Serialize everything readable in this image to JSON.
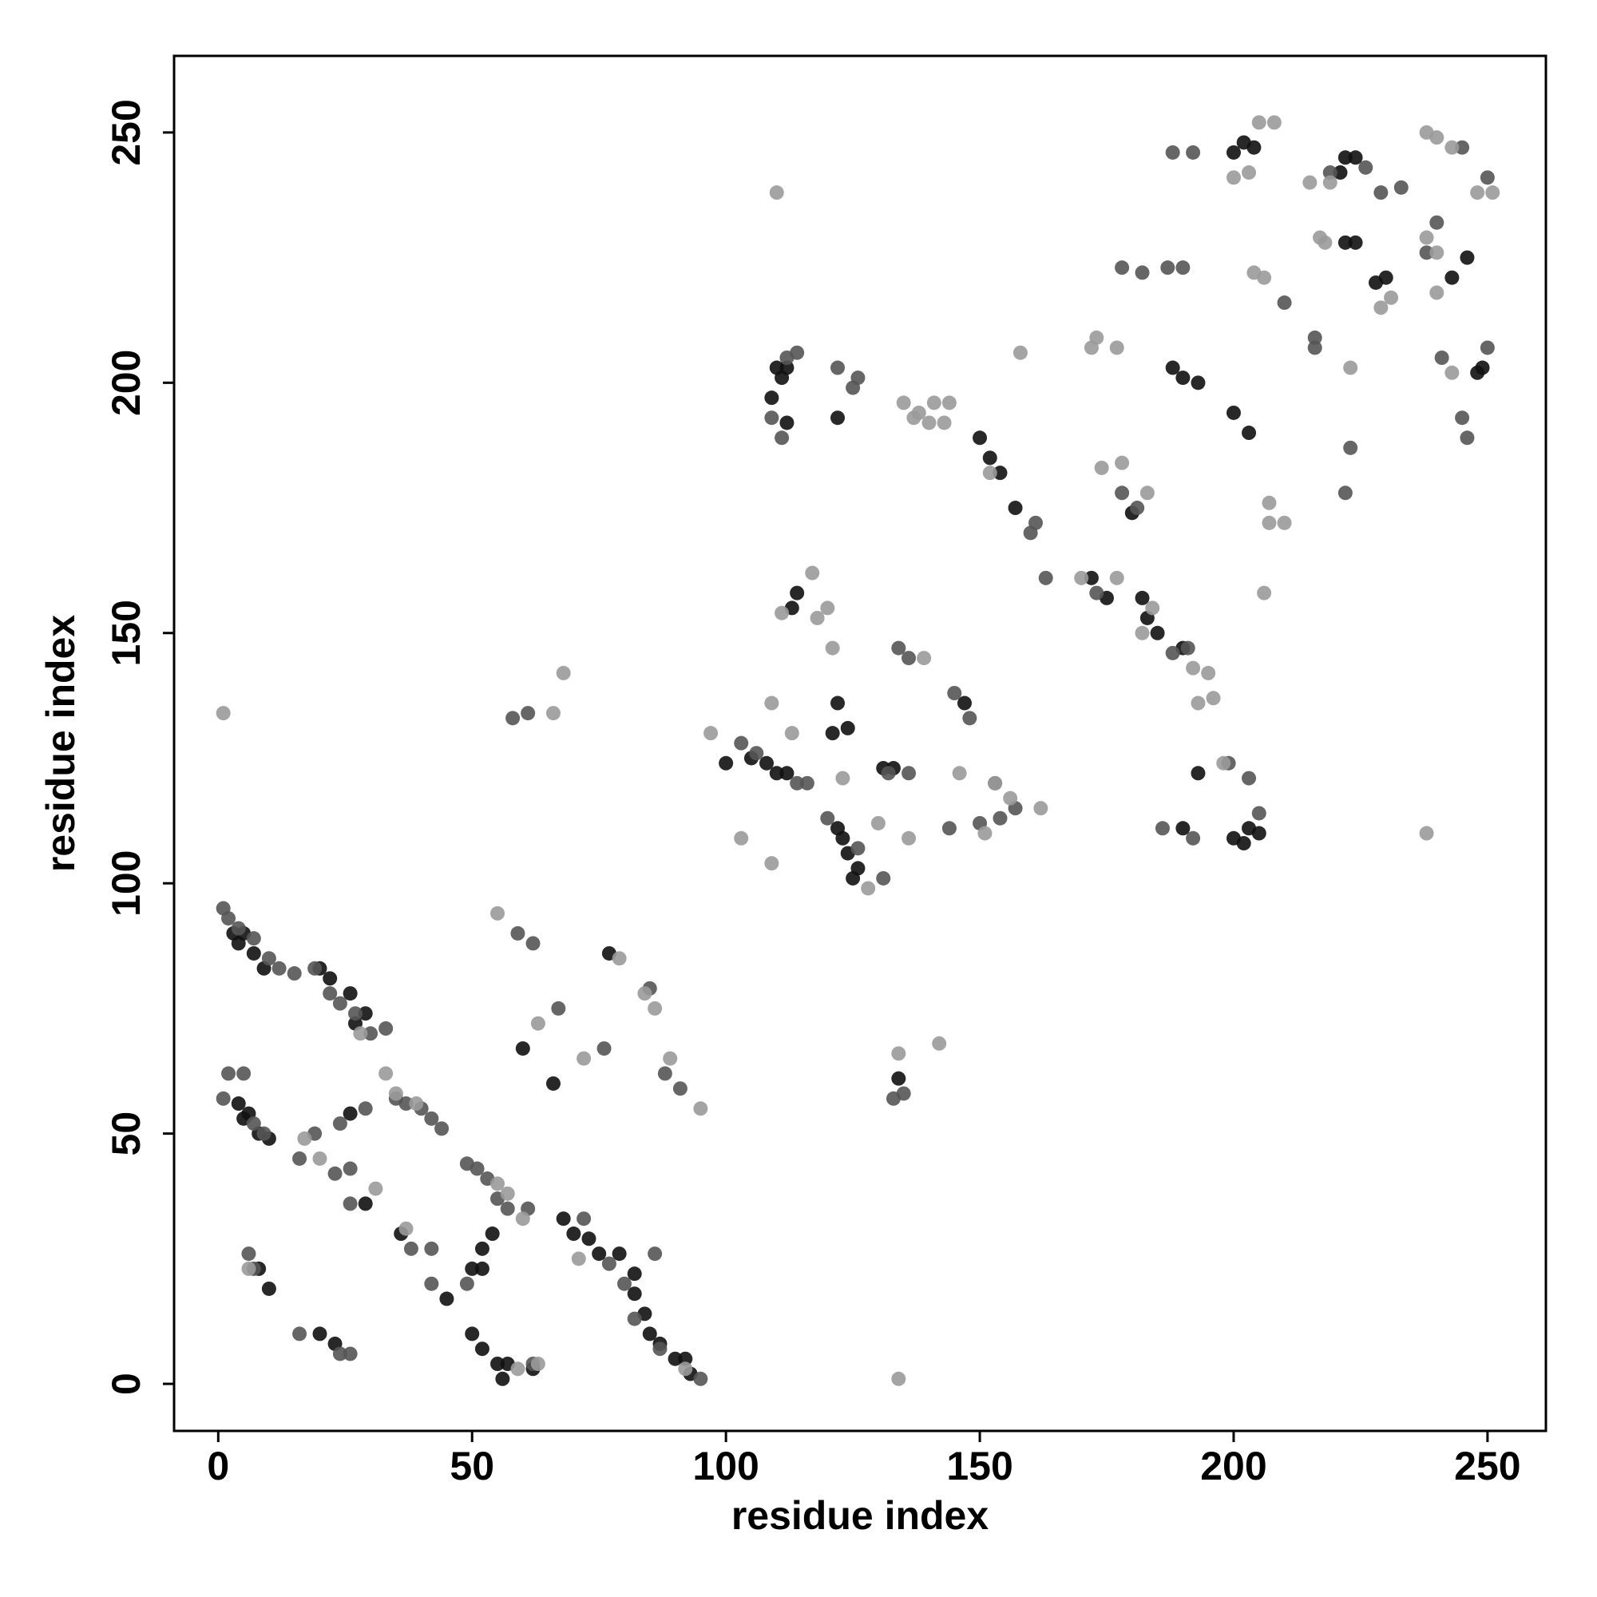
{
  "chart_data": {
    "type": "scatter",
    "x_label": "residue index",
    "y_label": "residue index",
    "xlim": [
      -8.7,
      261.5
    ],
    "ylim": [
      -9.4,
      265.3
    ],
    "xticks": [
      0,
      50,
      100,
      150,
      200,
      250
    ],
    "yticks": [
      0,
      50,
      100,
      150,
      200,
      250
    ],
    "series": [
      {
        "color": "#111111",
        "x": [
          3,
          4,
          5,
          7,
          9,
          20,
          22,
          26,
          29,
          27,
          4,
          5,
          6,
          8,
          10,
          26,
          29,
          36,
          45,
          50,
          52,
          52,
          54,
          50,
          52,
          55,
          57,
          56,
          62,
          68,
          70,
          73,
          75,
          77,
          79,
          82,
          82,
          84,
          85,
          87,
          90,
          92,
          93,
          8,
          10,
          20,
          23,
          60,
          66,
          100,
          105,
          108,
          110,
          112,
          110,
          111,
          112,
          109,
          112,
          114,
          113,
          122,
          124,
          121,
          122,
          123,
          124,
          125,
          126,
          131,
          133,
          122,
          147,
          150,
          152,
          154,
          157,
          172,
          175,
          180,
          182,
          183,
          185,
          190,
          188,
          190,
          193,
          193,
          190,
          200,
          202,
          203,
          205,
          200,
          203,
          200,
          202,
          204,
          221,
          222,
          224,
          222,
          224,
          228,
          230,
          243,
          246,
          248,
          249,
          134
        ],
        "values": [
          90,
          88,
          90,
          86,
          83,
          83,
          81,
          78,
          74,
          72,
          56,
          53,
          54,
          50,
          49,
          54,
          36,
          30,
          17,
          23,
          27,
          23,
          30,
          10,
          7,
          4,
          4,
          1,
          3,
          33,
          30,
          29,
          26,
          86,
          26,
          22,
          18,
          14,
          10,
          8,
          5,
          5,
          2,
          23,
          19,
          10,
          8,
          67,
          60,
          124,
          125,
          124,
          122,
          122,
          203,
          201,
          203,
          197,
          192,
          158,
          155,
          136,
          131,
          130,
          111,
          109,
          106,
          101,
          103,
          123,
          123,
          193,
          136,
          189,
          185,
          182,
          175,
          161,
          157,
          174,
          157,
          153,
          150,
          147,
          203,
          201,
          200,
          122,
          111,
          109,
          108,
          111,
          110,
          194,
          190,
          246,
          248,
          247,
          242,
          245,
          245,
          228,
          228,
          220,
          221,
          221,
          225,
          202,
          203,
          61
        ]
      },
      {
        "color": "#555555",
        "x": [
          1,
          2,
          4,
          7,
          10,
          12,
          15,
          19,
          22,
          24,
          27,
          30,
          33,
          35,
          37,
          40,
          42,
          44,
          1,
          2,
          5,
          7,
          9,
          16,
          19,
          24,
          26,
          29,
          38,
          42,
          42,
          49,
          51,
          53,
          55,
          57,
          61,
          62,
          49,
          59,
          62,
          67,
          76,
          72,
          77,
          80,
          82,
          85,
          86,
          88,
          91,
          87,
          95,
          6,
          7,
          16,
          24,
          26,
          23,
          26,
          58,
          61,
          103,
          106,
          114,
          116,
          112,
          114,
          122,
          125,
          126,
          120,
          126,
          131,
          134,
          136,
          132,
          136,
          145,
          148,
          144,
          153,
          150,
          154,
          157,
          160,
          163,
          173,
          178,
          181,
          188,
          191,
          186,
          192,
          199,
          203,
          205,
          210,
          216,
          216,
          219,
          223,
          222,
          226,
          229,
          233,
          238,
          240,
          241,
          245,
          246,
          250,
          250,
          245,
          188,
          192,
          182,
          187,
          190,
          178,
          161,
          133,
          135,
          109,
          111
        ],
        "values": [
          95,
          93,
          91,
          89,
          85,
          83,
          82,
          83,
          78,
          76,
          74,
          70,
          71,
          57,
          56,
          55,
          53,
          51,
          57,
          62,
          62,
          52,
          50,
          45,
          50,
          52,
          43,
          55,
          27,
          27,
          20,
          44,
          43,
          41,
          37,
          35,
          35,
          4,
          20,
          90,
          88,
          75,
          67,
          33,
          24,
          20,
          13,
          79,
          26,
          62,
          59,
          7,
          1,
          26,
          23,
          10,
          6,
          6,
          42,
          36,
          133,
          134,
          128,
          126,
          120,
          120,
          205,
          206,
          203,
          199,
          201,
          113,
          107,
          101,
          147,
          145,
          122,
          122,
          138,
          133,
          111,
          120,
          112,
          113,
          115,
          170,
          161,
          158,
          178,
          175,
          146,
          147,
          111,
          109,
          124,
          121,
          114,
          216,
          207,
          209,
          242,
          187,
          178,
          243,
          238,
          239,
          226,
          232,
          205,
          193,
          189,
          207,
          241,
          247,
          246,
          246,
          222,
          223,
          223,
          223,
          172,
          57,
          58,
          193,
          189
        ]
      },
      {
        "color": "#9a9a9a",
        "x": [
          1,
          68,
          66,
          55,
          63,
          72,
          79,
          84,
          86,
          89,
          95,
          37,
          31,
          28,
          17,
          20,
          33,
          35,
          39,
          55,
          57,
          60,
          63,
          71,
          59,
          92,
          6,
          97,
          103,
          109,
          109,
          111,
          113,
          117,
          120,
          118,
          121,
          123,
          128,
          130,
          136,
          139,
          135,
          138,
          141,
          144,
          137,
          140,
          143,
          146,
          153,
          151,
          156,
          162,
          158,
          172,
          173,
          177,
          174,
          178,
          183,
          152,
          170,
          177,
          182,
          184,
          192,
          193,
          195,
          196,
          198,
          206,
          207,
          207,
          210,
          204,
          206,
          200,
          203,
          205,
          208,
          215,
          219,
          223,
          229,
          231,
          238,
          240,
          243,
          238,
          240,
          240,
          243,
          248,
          251,
          238,
          110,
          134,
          142,
          134,
          218,
          217
        ],
        "values": [
          134,
          142,
          134,
          94,
          72,
          65,
          85,
          78,
          75,
          65,
          55,
          31,
          39,
          70,
          49,
          45,
          62,
          58,
          56,
          40,
          38,
          33,
          4,
          25,
          3,
          3,
          23,
          130,
          109,
          136,
          104,
          154,
          130,
          162,
          155,
          153,
          147,
          121,
          99,
          112,
          109,
          145,
          196,
          194,
          196,
          196,
          193,
          192,
          192,
          122,
          120,
          110,
          117,
          115,
          206,
          207,
          209,
          207,
          183,
          184,
          178,
          182,
          161,
          161,
          150,
          155,
          143,
          136,
          142,
          137,
          124,
          158,
          176,
          172,
          172,
          222,
          221,
          241,
          242,
          252,
          252,
          240,
          240,
          203,
          215,
          217,
          250,
          249,
          247,
          229,
          226,
          218,
          202,
          238,
          238,
          110,
          238,
          1,
          68,
          66,
          228,
          229
        ]
      }
    ]
  }
}
